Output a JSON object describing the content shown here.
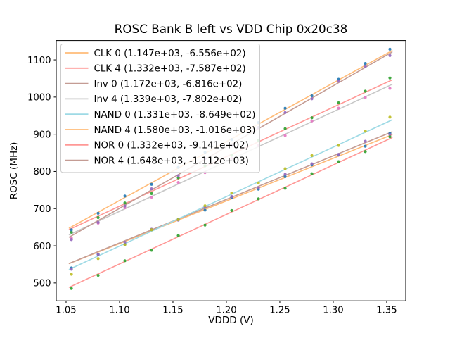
{
  "chart_data": {
    "type": "scatter",
    "title": "ROSC Bank B left vs VDD Chip 0x20c38",
    "xlabel": "VDDD (V)",
    "ylabel": "ROSC (MHz)",
    "xlim": [
      1.0408,
      1.3678
    ],
    "ylim": [
      452,
      1152
    ],
    "xticks": [
      1.05,
      1.1,
      1.15,
      1.2,
      1.25,
      1.3,
      1.35
    ],
    "xtick_labels": [
      "1.05",
      "1.10",
      "1.15",
      "1.20",
      "1.25",
      "1.30",
      "1.35"
    ],
    "yticks": [
      500,
      600,
      700,
      800,
      900,
      1000,
      1100
    ],
    "ytick_labels": [
      "500",
      "600",
      "700",
      "800",
      "900",
      "1000",
      "1100"
    ],
    "grid": false,
    "legend_position": "upper left",
    "fit_x_range": [
      1.053,
      1.355
    ],
    "scatter_x": [
      1.055,
      1.08,
      1.105,
      1.13,
      1.155,
      1.18,
      1.205,
      1.23,
      1.255,
      1.28,
      1.305,
      1.33,
      1.353
    ],
    "series": [
      {
        "name": "CLK 0",
        "legend_label": "CLK 0 (1.147e+03, -6.556e+02)",
        "fit": {
          "slope": 1147,
          "intercept": -655.6
        },
        "line_color": "#ffbb78",
        "marker_color": "#1f77b4",
        "residuals": [
          -14,
          -6,
          -8,
          3,
          2,
          -2,
          4,
          -3,
          2,
          5,
          3,
          -2,
          6
        ]
      },
      {
        "name": "CLK 4",
        "legend_label": "CLK 4 (1.332e+03, -7.587e+02)",
        "fit": {
          "slope": 1332,
          "intercept": -758.7
        },
        "line_color": "#ff9896",
        "marker_color": "#2ca02c",
        "residuals": [
          -10,
          -4,
          2,
          -6,
          3,
          2,
          -3,
          4,
          2,
          -2,
          5,
          3,
          8
        ]
      },
      {
        "name": "Inv 0",
        "legend_label": "Inv 0 (1.172e+03, -6.816e+02)",
        "fit": {
          "slope": 1172,
          "intercept": -681.6
        },
        "line_color": "#c49c94",
        "marker_color": "#9467bd",
        "residuals": [
          -18,
          -8,
          -4,
          2,
          -3,
          3,
          2,
          -4,
          3,
          2,
          -2,
          4,
          -5
        ]
      },
      {
        "name": "Inv 4",
        "legend_label": "Inv 4 (1.339e+03, -7.802e+02)",
        "fit": {
          "slope": 1339,
          "intercept": -780.2
        },
        "line_color": "#c7c7c7",
        "marker_color": "#e377c2",
        "residuals": [
          -12,
          -5,
          3,
          -2,
          4,
          -3,
          2,
          3,
          -4,
          2,
          3,
          -2,
          -8
        ]
      },
      {
        "name": "NAND 0",
        "legend_label": "NAND 0 (1.331e+03, -8.649e+02)",
        "fit": {
          "slope": 1331,
          "intercept": -864.9
        },
        "line_color": "#9edae5",
        "marker_color": "#bcbd22",
        "residuals": [
          -16,
          -7,
          -3,
          4,
          -2,
          2,
          3,
          -3,
          2,
          4,
          -2,
          3,
          10
        ]
      },
      {
        "name": "NAND 4",
        "legend_label": "NAND 4 (1.580e+03, -1.016e+03)",
        "fit": {
          "slope": 1580,
          "intercept": -1016
        },
        "line_color": "#ffbb78",
        "marker_color": "#1f77b4",
        "residuals": [
          -8,
          -3,
          4,
          -4,
          2,
          3,
          -2,
          4,
          3,
          -3,
          2,
          5,
          7
        ]
      },
      {
        "name": "NOR 0",
        "legend_label": "NOR 0 (1.332e+03, -9.141e+02)",
        "fit": {
          "slope": 1332,
          "intercept": -914.1
        },
        "line_color": "#ff9896",
        "marker_color": "#2ca02c",
        "residuals": [
          -6,
          -4,
          2,
          -3,
          3,
          -2,
          4,
          2,
          -3,
          3,
          2,
          -4,
          5
        ]
      },
      {
        "name": "NOR 4",
        "legend_label": "NOR 4 (1.648e+03, -1.112e+03)",
        "fit": {
          "slope": 1648,
          "intercept": -1112
        },
        "line_color": "#c49c94",
        "marker_color": "#9467bd",
        "residuals": [
          -10,
          -5,
          -2,
          3,
          -3,
          2,
          -4,
          3,
          2,
          -2,
          4,
          3,
          -6
        ]
      }
    ],
    "style": {
      "spine_color": "#000000",
      "legend_border_color": "#cccccc",
      "legend_bg": "rgba(255,255,255,0.85)"
    }
  }
}
